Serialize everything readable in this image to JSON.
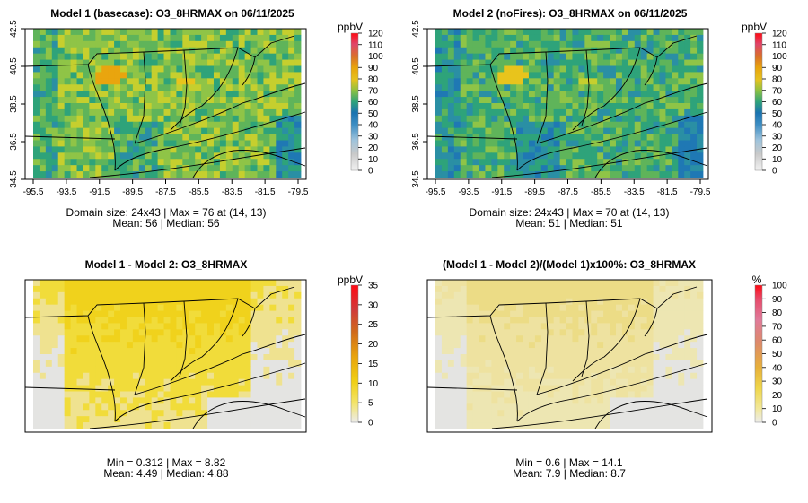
{
  "chart_data": [
    {
      "type": "heatmap",
      "title": "Model 1 (basecase): O3_8HRMAX on 06/11/2025",
      "unit": "ppbV",
      "x_ticks": [
        "-95.5",
        "-93.5",
        "-91.5",
        "-89.5",
        "-87.5",
        "-85.5",
        "-83.5",
        "-81.5",
        "-79.5"
      ],
      "y_ticks": [
        "34.5",
        "36.5",
        "38.5",
        "40.5",
        "42.5"
      ],
      "xlim": [
        -95.5,
        -79.5
      ],
      "ylim": [
        34.5,
        42.5
      ],
      "colorbar": {
        "min": 0,
        "max": 120,
        "ticks": [
          "0",
          "10",
          "20",
          "30",
          "40",
          "50",
          "60",
          "70",
          "80",
          "90",
          "100",
          "110",
          "120"
        ]
      },
      "stats": [
        "Domain size: 24x43 | Max = 76 at (14, 13)",
        "Mean: 56 |  Median: 56"
      ],
      "values": {
        "max": 76,
        "mean": 56,
        "median": 56
      }
    },
    {
      "type": "heatmap",
      "title": "Model 2 (noFires): O3_8HRMAX on 06/11/2025",
      "unit": "ppbV",
      "x_ticks": [
        "-95.5",
        "-93.5",
        "-91.5",
        "-89.5",
        "-87.5",
        "-85.5",
        "-83.5",
        "-81.5",
        "-79.5"
      ],
      "y_ticks": [
        "34.5",
        "36.5",
        "38.5",
        "40.5",
        "42.5"
      ],
      "xlim": [
        -95.5,
        -79.5
      ],
      "ylim": [
        34.5,
        42.5
      ],
      "colorbar": {
        "min": 0,
        "max": 120,
        "ticks": [
          "0",
          "10",
          "20",
          "30",
          "40",
          "50",
          "60",
          "70",
          "80",
          "90",
          "100",
          "110",
          "120"
        ]
      },
      "stats": [
        "Domain size: 24x43 | Max = 70 at (14, 13)",
        "Mean: 51 |  Median: 51"
      ],
      "values": {
        "max": 70,
        "mean": 51,
        "median": 51
      }
    },
    {
      "type": "heatmap",
      "title": "Model 1 - Model 2: O3_8HRMAX",
      "unit": "ppbV",
      "colorbar": {
        "min": 0,
        "max": 35,
        "ticks": [
          "0",
          "5",
          "10",
          "15",
          "20",
          "25",
          "30",
          "35"
        ]
      },
      "stats": [
        "Min = 0.312 | Max = 8.82",
        "Mean: 4.49 |  Median: 4.88"
      ],
      "values": {
        "min": 0.312,
        "max": 8.82,
        "mean": 4.49,
        "median": 4.88
      }
    },
    {
      "type": "heatmap",
      "title": "(Model 1 - Model 2)/(Model 1)x100%: O3_8HRMAX",
      "unit": "%",
      "colorbar": {
        "min": 0,
        "max": 100,
        "ticks": [
          "0",
          "10",
          "20",
          "30",
          "40",
          "50",
          "60",
          "70",
          "80",
          "90",
          "100"
        ]
      },
      "stats": [
        "Min = 0.6 | Max = 14.1",
        "Mean: 7.9 |  Median: 8.7"
      ],
      "values": {
        "min": 0.6,
        "max": 14.1,
        "mean": 7.9,
        "median": 8.7
      }
    }
  ]
}
